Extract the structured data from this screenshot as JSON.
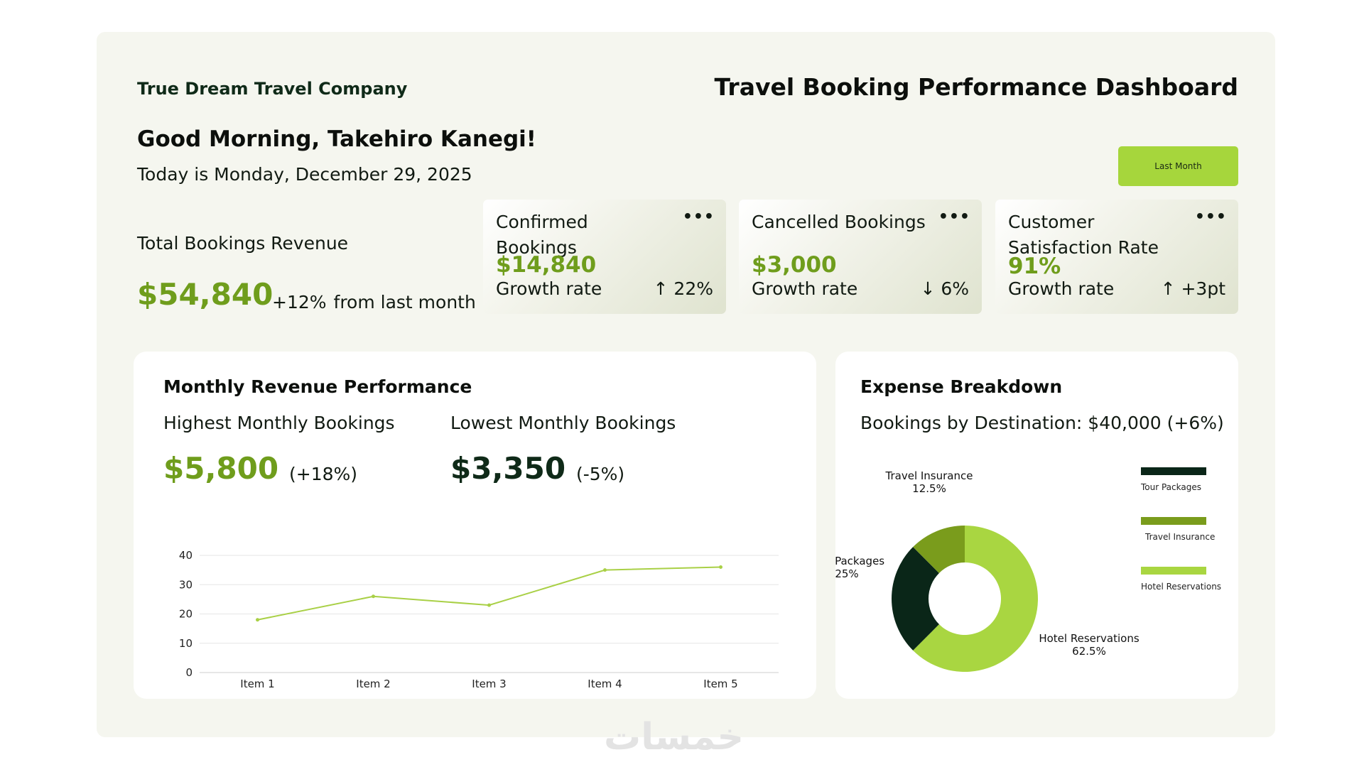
{
  "header": {
    "company": "True Dream Travel Company",
    "title": "Travel Booking Performance Dashboard",
    "greeting": "Good Morning, Takehiro Kanegi!",
    "date": "Today is Monday, December 29, 2025",
    "period_button": "Last Month"
  },
  "total_revenue": {
    "label": "Total Bookings Revenue",
    "value": "$54,840",
    "change": "+12%",
    "change_suffix": "from last month"
  },
  "kpis": [
    {
      "title": "Confirmed Bookings",
      "value": "$14,840",
      "growth_label": "Growth rate",
      "delta": "↑ 22%",
      "more": "•••"
    },
    {
      "title": "Cancelled Bookings",
      "value": "$3,000",
      "growth_label": "Growth rate",
      "delta": "↓ 6%",
      "more": "•••"
    },
    {
      "title": "Customer Satisfaction Rate",
      "value": "91%",
      "growth_label": "Growth rate",
      "delta": "↑ +3pt",
      "more": "•••"
    }
  ],
  "revenue_panel": {
    "title": "Monthly Revenue Performance",
    "highest_label": "Highest Monthly Bookings",
    "highest_value": "$5,800",
    "highest_change": "(+18%)",
    "lowest_label": "Lowest Monthly Bookings",
    "lowest_value": "$3,350",
    "lowest_change": "(-5%)"
  },
  "expense_panel": {
    "title": "Expense Breakdown",
    "subtitle": "Bookings by Destination: $40,000 (+6%)"
  },
  "colors": {
    "accent_green": "#6f9d1c",
    "dark_green": "#0f2a18",
    "lime": "#a6d63c",
    "olive": "#7a9c1c",
    "line": "#a9d046"
  },
  "chart_data": [
    {
      "type": "line",
      "categories": [
        "Item 1",
        "Item 2",
        "Item 3",
        "Item 4",
        "Item 5"
      ],
      "values": [
        18,
        26,
        23,
        35,
        36
      ],
      "ylim": [
        0,
        40
      ],
      "yticks": [
        0,
        10,
        20,
        30,
        40
      ],
      "grid": true,
      "title": "",
      "xlabel": "",
      "ylabel": ""
    },
    {
      "type": "pie",
      "donut": true,
      "slices": [
        {
          "label": "Hotel Reservations",
          "percent": "62.5%",
          "value": 62.5,
          "color": "#a9d641"
        },
        {
          "label": "Tour Packages",
          "percent": "25%",
          "value": 25,
          "color": "#0a2618"
        },
        {
          "label": "Travel Insurance",
          "percent": "12.5%",
          "value": 12.5,
          "color": "#7a9c1c"
        }
      ],
      "legend": [
        {
          "label": "Tour Packages",
          "color": "#0a2618"
        },
        {
          "label": "Travel Insurance",
          "color": "#7a9c1c"
        },
        {
          "label": "Hotel Reservations",
          "color": "#a9d641"
        }
      ],
      "legend_position": "right"
    }
  ],
  "watermark": "خمسات"
}
